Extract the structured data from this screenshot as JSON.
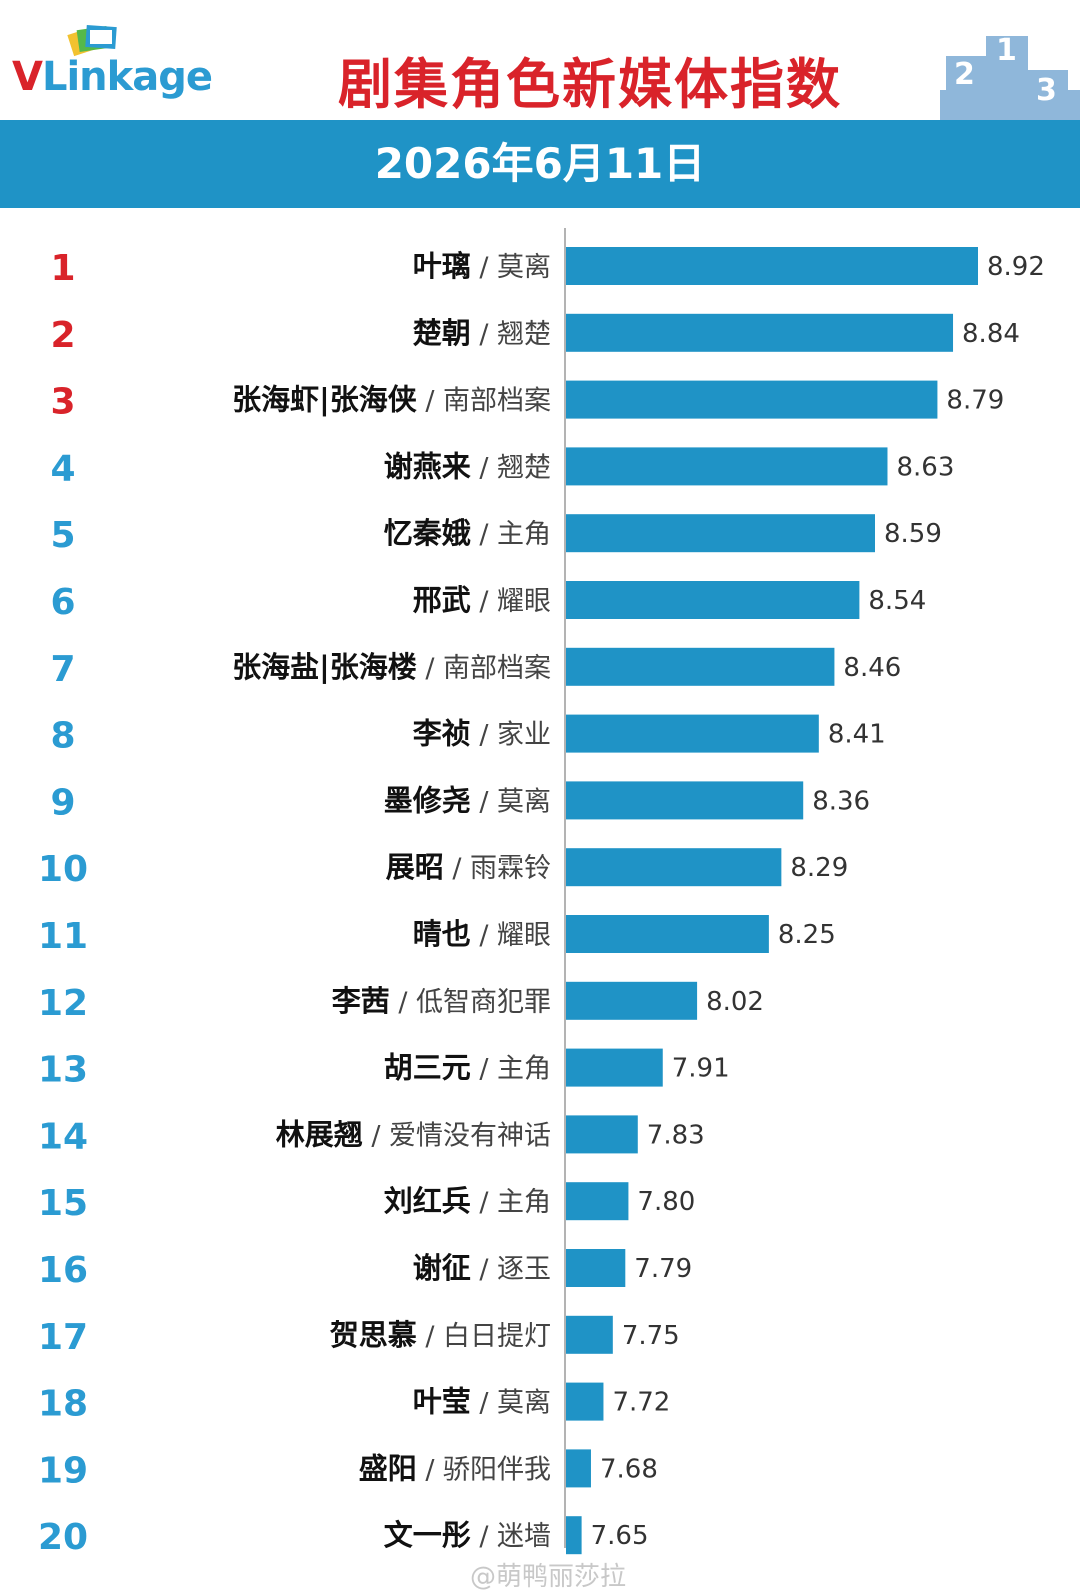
{
  "header": {
    "logo_text": "VLinkage",
    "title": "剧集角色新媒体指数",
    "podium_icon": "podium-icon"
  },
  "date_bar": {
    "date": "2026年6月11日"
  },
  "colors": {
    "bar": "#1f93c6",
    "date_bar": "#1f93c6",
    "top3_rank": "#d9232a",
    "other_rank": "#2b9bd2",
    "title": "#d9232a"
  },
  "chart_data": {
    "type": "bar",
    "orientation": "horizontal",
    "title": "剧集角色新媒体指数",
    "subtitle": "2026年6月11日",
    "grid": false,
    "categories": [
      {
        "rank": "1",
        "name": "叶璃",
        "show": "莫离",
        "value": 8.92
      },
      {
        "rank": "2",
        "name": "楚朝",
        "show": "翘楚",
        "value": 8.84
      },
      {
        "rank": "3",
        "name": "张海虾|张海侠",
        "show": "南部档案",
        "value": 8.79
      },
      {
        "rank": "4",
        "name": "谢燕来",
        "show": "翘楚",
        "value": 8.63
      },
      {
        "rank": "5",
        "name": "忆秦娥",
        "show": "主角",
        "value": 8.59
      },
      {
        "rank": "6",
        "name": "邢武",
        "show": "耀眼",
        "value": 8.54
      },
      {
        "rank": "7",
        "name": "张海盐|张海楼",
        "show": "南部档案",
        "value": 8.46
      },
      {
        "rank": "8",
        "name": "李祯",
        "show": "家业",
        "value": 8.41
      },
      {
        "rank": "9",
        "name": "墨修尧",
        "show": "莫离",
        "value": 8.36
      },
      {
        "rank": "10",
        "name": "展昭",
        "show": "雨霖铃",
        "value": 8.29
      },
      {
        "rank": "11",
        "name": "晴也",
        "show": "耀眼",
        "value": 8.25
      },
      {
        "rank": "12",
        "name": "李茜",
        "show": "低智商犯罪",
        "value": 8.02
      },
      {
        "rank": "13",
        "name": "胡三元",
        "show": "主角",
        "value": 7.91
      },
      {
        "rank": "14",
        "name": "林展翘",
        "show": "爱情没有神话",
        "value": 7.83
      },
      {
        "rank": "15",
        "name": "刘红兵",
        "show": "主角",
        "value": 7.8
      },
      {
        "rank": "16",
        "name": "谢征",
        "show": "逐玉",
        "value": 7.79
      },
      {
        "rank": "17",
        "name": "贺思慕",
        "show": "白日提灯",
        "value": 7.75
      },
      {
        "rank": "18",
        "name": "叶莹",
        "show": "莫离",
        "value": 7.72
      },
      {
        "rank": "19",
        "name": "盛阳",
        "show": "骄阳伴我",
        "value": 7.68
      },
      {
        "rank": "20",
        "name": "文一彤",
        "show": "迷墙",
        "value": 7.65
      }
    ],
    "value_labels": [
      "8.92",
      "8.84",
      "8.79",
      "8.63",
      "8.59",
      "8.54",
      "8.46",
      "8.41",
      "8.36",
      "8.29",
      "8.25",
      "8.02",
      "7.91",
      "7.83",
      "7.80",
      "7.79",
      "7.75",
      "7.72",
      "7.68",
      "7.65"
    ],
    "xlim": [
      7.6,
      8.92
    ]
  },
  "watermark": "@萌鸭丽莎拉"
}
